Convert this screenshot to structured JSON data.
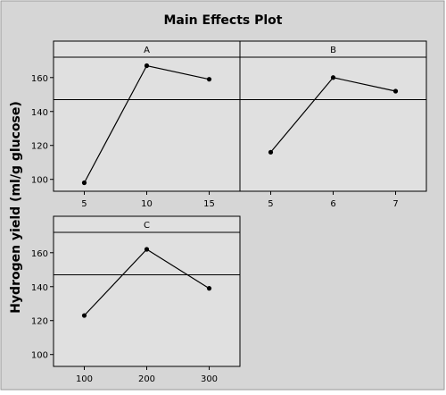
{
  "chart_data": {
    "type": "line",
    "title": "Main Effects Plot",
    "ylabel": "Hydrogen yield (ml/g glucose)",
    "overall_mean": 147,
    "yticks": [
      100,
      120,
      140,
      160
    ],
    "ylim": [
      93,
      172
    ],
    "panels": [
      {
        "name": "A",
        "x": [
          "5",
          "10",
          "15"
        ],
        "y": [
          98,
          167,
          159
        ]
      },
      {
        "name": "B",
        "x": [
          "5",
          "6",
          "7"
        ],
        "y": [
          116,
          160,
          152
        ]
      },
      {
        "name": "C",
        "x": [
          "100",
          "200",
          "300"
        ],
        "y": [
          123,
          162,
          139
        ]
      }
    ]
  },
  "colors": {
    "background": "#ffffff",
    "canvas": "#d6d6d6",
    "plot_area": "#e0e0e0",
    "line": "#000000"
  }
}
